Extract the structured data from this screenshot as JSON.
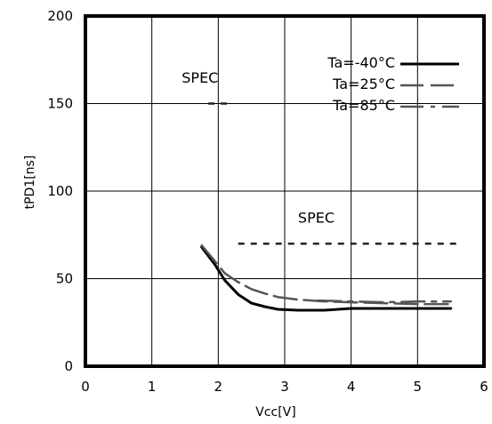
{
  "chart_data": {
    "type": "line",
    "title": "",
    "xlabel": "Vcc[V]",
    "ylabel": "tPD1[ns]",
    "xlim": [
      0,
      6
    ],
    "ylim": [
      0,
      200
    ],
    "xticks": [
      "0",
      "1",
      "2",
      "3",
      "4",
      "5",
      "6"
    ],
    "yticks": [
      "0",
      "50",
      "100",
      "150",
      "200"
    ],
    "grid": true,
    "legend_position": "top-right",
    "series": [
      {
        "name": "Ta=-40°C",
        "style": "solid",
        "color": "#000000",
        "x": [
          1.75,
          1.95,
          2.1,
          2.3,
          2.5,
          2.7,
          2.9,
          3.2,
          3.6,
          4.0,
          4.5,
          5.0,
          5.5
        ],
        "y": [
          68,
          58,
          49,
          41,
          36,
          34,
          32.5,
          32,
          32,
          33,
          33,
          33,
          33
        ]
      },
      {
        "name": "Ta=25°C",
        "style": "dash",
        "color": "#555555",
        "x": [
          1.75,
          1.95,
          2.1,
          2.3,
          2.5,
          2.7,
          2.9,
          3.2,
          3.6,
          4.0,
          4.5,
          5.0,
          5.5
        ],
        "y": [
          69,
          60,
          53,
          48,
          44,
          41.5,
          39.5,
          38,
          37,
          36.5,
          36,
          35.5,
          35.5
        ]
      },
      {
        "name": "Ta=85°C",
        "style": "dashdot",
        "color": "#555555",
        "x": [
          3.5,
          4.0,
          4.5,
          5.0,
          5.5
        ],
        "y": [
          37.5,
          37,
          36.5,
          37,
          37
        ]
      }
    ],
    "spec_lines": [
      {
        "label": "SPEC",
        "y": 150,
        "x": [
          1.85,
          2.2
        ],
        "label_x": 1.45,
        "label_y": 162
      },
      {
        "label": "SPEC",
        "y": 70,
        "x": [
          2.3,
          5.6
        ],
        "label_x": 3.2,
        "label_y": 82
      }
    ]
  }
}
